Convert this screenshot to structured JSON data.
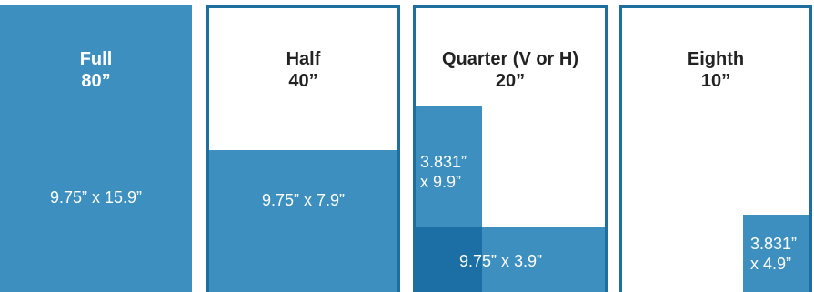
{
  "colors": {
    "fill": "#3d8fc0",
    "fill_dark": "#1b6fa5",
    "border": "#1f6f9e",
    "title_text": "#222222",
    "fill_text": "#ffffff"
  },
  "panels": [
    {
      "name": "Full",
      "price": "80”",
      "dimensions": "9.75” x 15.9”"
    },
    {
      "name": "Half",
      "price": "40”",
      "dimensions": "9.75” x 7.9”"
    },
    {
      "name": "Quarter (V or H)",
      "price": "20”",
      "vertical_dimensions": [
        "3.831”",
        "x 9.9”"
      ],
      "horizontal_dimensions": "9.75” x 3.9”"
    },
    {
      "name": "Eighth",
      "price": "10”",
      "dimensions": [
        "3.831”",
        "x 4.9”"
      ]
    }
  ]
}
